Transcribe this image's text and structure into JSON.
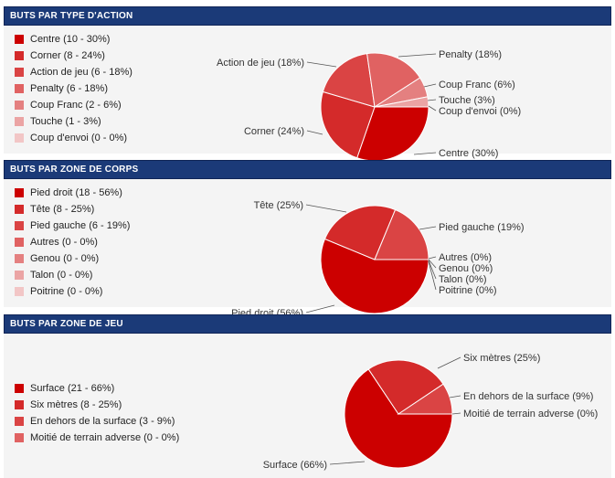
{
  "colors": [
    "#cc0000",
    "#d42a2a",
    "#da4444",
    "#e06262",
    "#e48080",
    "#eba4a4",
    "#f2c6c6"
  ],
  "panels": [
    {
      "title": "BUTS PAR TYPE D'ACTION",
      "legend": [
        "Centre (10 - 30%)",
        "Corner (8 - 24%)",
        "Action de jeu (6 - 18%)",
        "Penalty (6 - 18%)",
        "Coup Franc (2 - 6%)",
        "Touche (1 - 3%)",
        "Coup d'envoi (0 - 0%)"
      ]
    },
    {
      "title": "BUTS PAR ZONE DE CORPS",
      "legend": [
        "Pied droit (18 - 56%)",
        "Tête (8 - 25%)",
        "Pied gauche (6 - 19%)",
        "Autres (0 - 0%)",
        "Genou (0 - 0%)",
        "Talon (0 - 0%)",
        "Poitrine (0 - 0%)"
      ]
    },
    {
      "title": "BUTS PAR ZONE DE JEU",
      "legend": [
        "Surface (21 - 66%)",
        "Six mètres (8 - 25%)",
        "En dehors de la surface (3 - 9%)",
        "Moitié de terrain adverse (0 - 0%)"
      ]
    }
  ],
  "chart_data": [
    {
      "type": "pie",
      "title": "BUTS PAR TYPE D'ACTION",
      "categories": [
        "Centre",
        "Corner",
        "Action de jeu",
        "Penalty",
        "Coup Franc",
        "Touche",
        "Coup d'envoi"
      ],
      "values": [
        10,
        8,
        6,
        6,
        2,
        1,
        0
      ],
      "labels": [
        "Centre (30%)",
        "Corner (24%)",
        "Action de jeu (18%)",
        "Penalty (18%)",
        "Coup Franc (6%)",
        "Touche (3%)",
        "Coup d'envoi (0%)"
      ]
    },
    {
      "type": "pie",
      "title": "BUTS PAR ZONE DE CORPS",
      "categories": [
        "Pied droit",
        "Tête",
        "Pied gauche",
        "Autres",
        "Genou",
        "Talon",
        "Poitrine"
      ],
      "values": [
        18,
        8,
        6,
        0,
        0,
        0,
        0
      ],
      "labels": [
        "Pied droit (56%)",
        "Tête (25%)",
        "Pied gauche (19%)",
        "Autres (0%)",
        "Genou (0%)",
        "Talon (0%)",
        "Poitrine (0%)"
      ]
    },
    {
      "type": "pie",
      "title": "BUTS PAR ZONE DE JEU",
      "categories": [
        "Surface",
        "Six mètres",
        "En dehors de la surface",
        "Moitié de terrain adverse"
      ],
      "values": [
        21,
        8,
        3,
        0
      ],
      "labels": [
        "Surface (66%)",
        "Six mètres (25%)",
        "En dehors de la surface (9%)",
        "Moitié de terrain adverse (0%)"
      ]
    }
  ]
}
